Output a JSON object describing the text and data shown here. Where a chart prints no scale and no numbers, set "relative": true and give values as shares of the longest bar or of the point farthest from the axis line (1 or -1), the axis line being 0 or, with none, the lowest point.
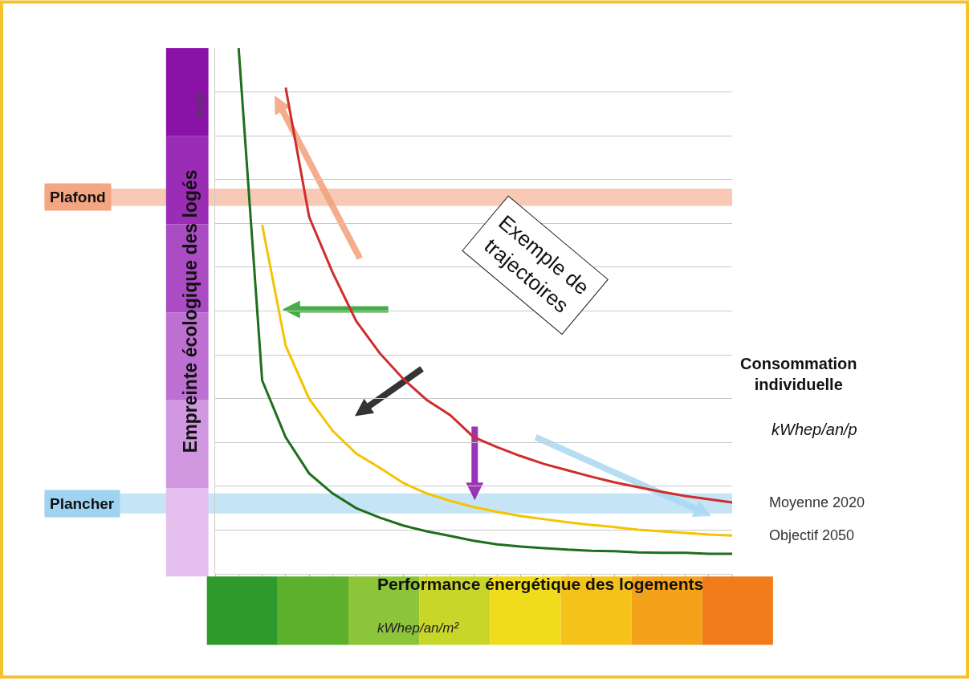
{
  "chart_data": {
    "type": "line",
    "relative": true,
    "grid": "y",
    "legend": false,
    "marker": "none",
    "line_style": "solid",
    "xlabel": "Performance énergétique des logements",
    "ylabel": "Empreinte écologique des logés",
    "categories": [
      null,
      null,
      null,
      null,
      null,
      null,
      null,
      null,
      null,
      null,
      null,
      null,
      null,
      null,
      null,
      null,
      null,
      null,
      null,
      null,
      null,
      null,
      null
    ],
    "series": [
      {
        "color": "#1e6e1e",
        "values": [
          null,
          1.0,
          0.368,
          0.26,
          0.191,
          0.153,
          0.125,
          0.107,
          0.092,
          0.081,
          0.072,
          0.063,
          0.056,
          0.052,
          0.049,
          0.046,
          0.044,
          0.043,
          0.041,
          0.04,
          0.04,
          0.038,
          0.038
        ]
      },
      {
        "name": "Objectif 2050",
        "color": "#f5c400",
        "values": [
          null,
          null,
          0.664,
          0.434,
          0.333,
          0.272,
          0.229,
          0.202,
          0.173,
          0.153,
          0.139,
          0.127,
          0.118,
          0.11,
          0.104,
          0.098,
          0.093,
          0.089,
          0.084,
          0.081,
          0.078,
          0.075,
          0.073
        ]
      },
      {
        "name": "Moyenne 2020",
        "color": "#d02c2c",
        "values": [
          null,
          null,
          null,
          0.925,
          0.679,
          0.573,
          0.481,
          0.42,
          0.371,
          0.331,
          0.302,
          0.26,
          0.241,
          0.224,
          0.209,
          0.197,
          0.185,
          0.174,
          0.165,
          0.156,
          0.148,
          0.142,
          0.136
        ]
      }
    ],
    "bands": [
      {
        "axis": "y",
        "from": 0.7,
        "to": 0.733,
        "label": "Plafond",
        "color": "#f4a582"
      },
      {
        "axis": "y",
        "from": 0.115,
        "to": 0.153,
        "label": "Plancher",
        "color": "#9fd3f0"
      }
    ],
    "annotations": [
      "Exemple de\ntrajectoires",
      "Consommation\nindividuelle",
      "kWhep/an/p",
      "m²/p",
      "kWhep/an/m²"
    ]
  }
}
